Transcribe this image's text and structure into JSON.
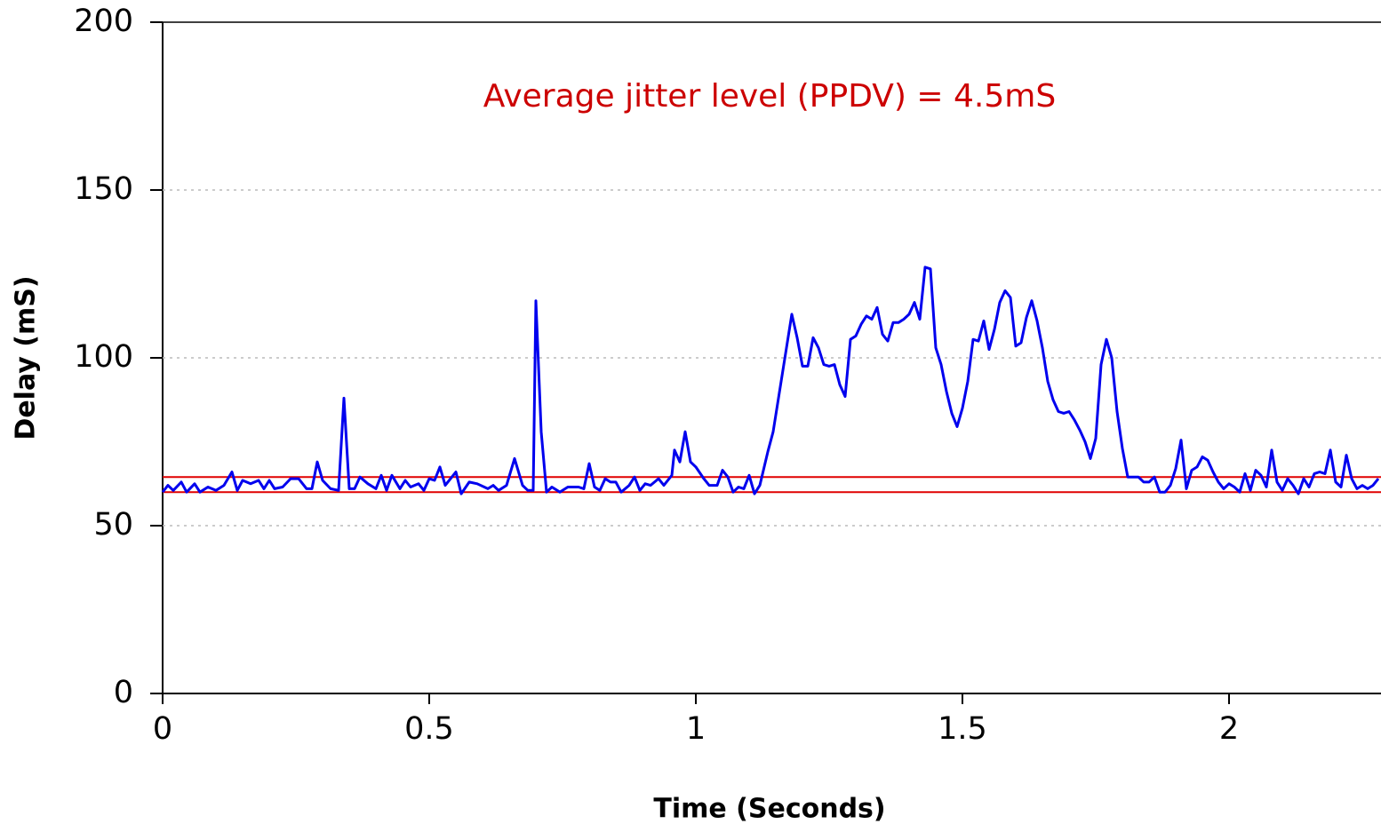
{
  "chart_data": {
    "type": "line",
    "annotation": {
      "text": "Average jitter level (PPDV) = 4.5mS",
      "color": "#cc0000"
    },
    "xlabel": "Time (Seconds)",
    "ylabel": "Delay (mS)",
    "xlim": [
      0,
      2.285
    ],
    "ylim": [
      0,
      200
    ],
    "xticks": [
      0,
      0.5,
      1,
      1.5,
      2
    ],
    "yticks": [
      0,
      50,
      100,
      150,
      200
    ],
    "grid": true,
    "hlines": [
      {
        "value": 64.5,
        "color": "#e00000"
      },
      {
        "value": 60,
        "color": "#e00000"
      }
    ],
    "x": [
      0,
      0.01,
      0.02,
      0.035,
      0.045,
      0.06,
      0.07,
      0.085,
      0.1,
      0.115,
      0.13,
      0.14,
      0.15,
      0.165,
      0.18,
      0.19,
      0.2,
      0.21,
      0.225,
      0.24,
      0.255,
      0.27,
      0.28,
      0.29,
      0.3,
      0.315,
      0.33,
      0.34,
      0.35,
      0.36,
      0.37,
      0.385,
      0.4,
      0.41,
      0.42,
      0.43,
      0.445,
      0.455,
      0.465,
      0.48,
      0.49,
      0.5,
      0.51,
      0.52,
      0.53,
      0.55,
      0.56,
      0.575,
      0.59,
      0.61,
      0.62,
      0.63,
      0.645,
      0.66,
      0.675,
      0.685,
      0.695,
      0.7,
      0.71,
      0.72,
      0.73,
      0.745,
      0.76,
      0.78,
      0.79,
      0.8,
      0.81,
      0.82,
      0.83,
      0.84,
      0.85,
      0.86,
      0.875,
      0.885,
      0.895,
      0.905,
      0.915,
      0.93,
      0.94,
      0.955,
      0.96,
      0.97,
      0.98,
      0.99,
      1.0,
      1.015,
      1.025,
      1.04,
      1.05,
      1.06,
      1.07,
      1.08,
      1.09,
      1.1,
      1.11,
      1.12,
      1.135,
      1.145,
      1.16,
      1.17,
      1.18,
      1.19,
      1.2,
      1.21,
      1.22,
      1.23,
      1.24,
      1.25,
      1.26,
      1.27,
      1.28,
      1.29,
      1.3,
      1.31,
      1.32,
      1.33,
      1.34,
      1.35,
      1.36,
      1.37,
      1.38,
      1.39,
      1.4,
      1.41,
      1.42,
      1.43,
      1.44,
      1.45,
      1.46,
      1.47,
      1.48,
      1.49,
      1.5,
      1.51,
      1.52,
      1.53,
      1.54,
      1.55,
      1.56,
      1.57,
      1.58,
      1.59,
      1.6,
      1.61,
      1.62,
      1.63,
      1.64,
      1.65,
      1.66,
      1.67,
      1.68,
      1.69,
      1.7,
      1.71,
      1.72,
      1.73,
      1.74,
      1.75,
      1.76,
      1.77,
      1.78,
      1.79,
      1.8,
      1.81,
      1.82,
      1.83,
      1.84,
      1.85,
      1.86,
      1.87,
      1.88,
      1.89,
      1.9,
      1.91,
      1.92,
      1.93,
      1.94,
      1.95,
      1.96,
      1.97,
      1.98,
      1.99,
      2.0,
      2.01,
      2.02,
      2.03,
      2.04,
      2.05,
      2.06,
      2.07,
      2.08,
      2.09,
      2.1,
      2.11,
      2.12,
      2.13,
      2.14,
      2.15,
      2.16,
      2.17,
      2.18,
      2.19,
      2.2,
      2.21,
      2.22,
      2.23,
      2.24,
      2.25,
      2.26,
      2.27,
      2.28
    ],
    "series": [
      {
        "color": "#0000ee",
        "values": [
          60,
          62,
          60.5,
          63,
          60,
          62.5,
          60,
          61.5,
          60.5,
          62,
          66,
          60.5,
          63.5,
          62.5,
          63.5,
          61,
          63.5,
          61,
          61.5,
          64,
          64,
          61,
          61,
          69,
          63.5,
          61,
          60.5,
          88,
          61,
          61,
          64.5,
          62.5,
          61,
          65,
          60.5,
          65,
          61,
          63.5,
          61.5,
          62.5,
          60.5,
          64,
          63.5,
          67.5,
          62,
          66,
          59.5,
          63,
          62.5,
          61,
          62,
          60.5,
          62,
          70,
          62,
          60.5,
          60.5,
          117,
          78,
          60,
          61.5,
          60,
          61.5,
          61.5,
          61,
          68.5,
          61.5,
          60.5,
          64,
          63,
          63,
          60,
          62,
          64.5,
          60.5,
          62.5,
          62,
          64,
          62,
          65,
          72.5,
          69,
          78,
          69,
          67.5,
          64,
          62,
          62,
          66.5,
          64.5,
          60,
          61.5,
          61,
          65,
          59.5,
          62,
          72,
          78,
          93,
          103,
          113,
          106,
          97.5,
          97.5,
          106,
          103,
          98,
          97.5,
          98,
          92,
          88.5,
          105.5,
          106.5,
          110,
          112.5,
          111.5,
          115,
          107,
          105,
          110.5,
          110.5,
          111.5,
          113,
          116.5,
          111.5,
          127,
          126.5,
          103,
          98,
          90,
          83.5,
          79.5,
          85,
          93,
          105.5,
          105,
          111,
          102.5,
          108.5,
          116.5,
          120,
          118,
          103.5,
          104.5,
          112,
          117,
          111,
          103,
          93,
          87.5,
          84,
          83.5,
          84,
          81.5,
          78.5,
          75,
          70,
          76,
          98,
          105.5,
          100,
          84,
          73,
          64.5,
          64.5,
          64.5,
          63,
          63,
          64.5,
          60,
          60,
          62,
          67,
          75.5,
          61,
          66.5,
          67.5,
          70.5,
          69.5,
          66,
          63,
          61,
          62.5,
          61.5,
          60,
          65.5,
          60.5,
          66.5,
          65,
          61.5,
          72.5,
          63,
          60.5,
          64,
          62,
          59.5,
          64,
          61.5,
          65.5,
          66,
          65.5,
          72.5,
          63,
          61.5,
          71,
          64,
          61,
          62,
          61,
          62,
          64
        ]
      }
    ]
  }
}
